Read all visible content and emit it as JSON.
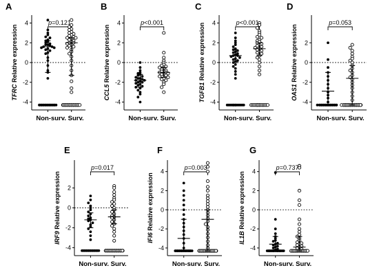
{
  "figure": {
    "chart_data": [
      {
        "type": "scatter",
        "panel": "A",
        "gene": "TFRC",
        "ylabel_suffix": " Relative expression",
        "categories": [
          "Non-surv.",
          "Surv."
        ],
        "yticks": [
          -4,
          -2,
          0,
          2,
          4
        ],
        "ylim": [
          -4.8,
          4.8
        ],
        "pvalue": "0.121",
        "series": [
          {
            "center": 1.6,
            "upper": 2.2,
            "lower": -1.0,
            "values": [
              4.3,
              3.3,
              3.0,
              2.8,
              2.6,
              2.5,
              2.3,
              2.2,
              2.1,
              2.0,
              1.9,
              1.8,
              1.8,
              1.7,
              1.6,
              1.6,
              1.5,
              1.5,
              1.4,
              1.3,
              1.2,
              1.0,
              0.9,
              0.5,
              0.2,
              -0.3,
              -0.8,
              -1.0,
              -1.6,
              -4.3,
              -4.3,
              -4.3,
              -4.3,
              -4.3,
              -4.3,
              -4.3,
              -4.3
            ]
          },
          {
            "center": 2.0,
            "upper": 2.5,
            "lower": -1.3,
            "values": [
              4.3,
              3.8,
              3.6,
              3.4,
              3.3,
              3.1,
              3.0,
              2.9,
              2.8,
              2.7,
              2.6,
              2.5,
              2.5,
              2.4,
              2.3,
              2.2,
              2.1,
              2.0,
              2.0,
              1.9,
              1.8,
              1.7,
              1.6,
              1.5,
              1.3,
              1.1,
              0.9,
              0.6,
              0.2,
              -0.3,
              -0.8,
              -1.3,
              -1.9,
              -2.6,
              -3.0,
              -4.3,
              -4.3,
              -4.3,
              -4.3,
              -4.3,
              -4.3,
              -4.3,
              -4.3
            ]
          }
        ]
      },
      {
        "type": "scatter",
        "panel": "B",
        "gene": "CCL5",
        "ylabel_suffix": " Relative expression",
        "categories": [
          "Non-surv.",
          "Surv."
        ],
        "yticks": [
          -4,
          -2,
          0,
          2,
          4
        ],
        "ylim": [
          -4.8,
          4.8
        ],
        "pvalue": "<0.001",
        "series": [
          {
            "center": -1.8,
            "upper": -1.2,
            "lower": -2.5,
            "values": [
              0.0,
              -0.5,
              -0.8,
              -1.0,
              -1.1,
              -1.2,
              -1.3,
              -1.4,
              -1.5,
              -1.6,
              -1.6,
              -1.7,
              -1.8,
              -1.8,
              -1.9,
              -2.0,
              -2.0,
              -2.1,
              -2.2,
              -2.3,
              -2.4,
              -2.5,
              -2.6,
              -2.8,
              -3.0,
              -3.2,
              -3.5,
              -4.0
            ]
          },
          {
            "center": -1.0,
            "upper": -0.5,
            "lower": -1.5,
            "values": [
              3.0,
              1.0,
              0.5,
              0.2,
              0.0,
              -0.2,
              -0.3,
              -0.4,
              -0.5,
              -0.6,
              -0.7,
              -0.8,
              -0.9,
              -0.9,
              -1.0,
              -1.0,
              -1.1,
              -1.2,
              -1.2,
              -1.3,
              -1.4,
              -1.5,
              -1.6,
              -1.7,
              -1.8,
              -2.0,
              -2.2,
              -2.5,
              -3.0
            ]
          }
        ]
      },
      {
        "type": "scatter",
        "panel": "C",
        "gene": "TGFB1",
        "ylabel_suffix": " Relative expression",
        "categories": [
          "Non-surv.",
          "Surv."
        ],
        "yticks": [
          -4,
          -2,
          0,
          2,
          4
        ],
        "ylim": [
          -4.8,
          4.8
        ],
        "pvalue": "<0.001",
        "series": [
          {
            "center": 0.7,
            "upper": 1.3,
            "lower": 0.0,
            "values": [
              3.0,
              2.5,
              2.2,
              2.0,
              1.8,
              1.6,
              1.4,
              1.3,
              1.2,
              1.1,
              1.0,
              0.9,
              0.8,
              0.7,
              0.7,
              0.6,
              0.5,
              0.4,
              0.3,
              0.2,
              0.1,
              0.0,
              -0.2,
              -0.4,
              -0.6,
              -0.9,
              -1.2,
              -1.6,
              -4.3,
              -4.3
            ]
          },
          {
            "center": 1.4,
            "upper": 2.0,
            "lower": 0.7,
            "values": [
              4.0,
              3.8,
              3.5,
              3.2,
              3.0,
              2.8,
              2.6,
              2.5,
              2.3,
              2.2,
              2.1,
              2.0,
              1.9,
              1.8,
              1.7,
              1.6,
              1.5,
              1.4,
              1.3,
              1.2,
              1.1,
              1.0,
              0.9,
              0.7,
              0.5,
              0.3,
              0.0,
              -0.4,
              -0.8,
              -1.2,
              -4.3,
              -4.3
            ]
          }
        ]
      },
      {
        "type": "scatter",
        "panel": "D",
        "gene": "OAS1",
        "ylabel_suffix": " Relative expression",
        "categories": [
          "Non-surv.",
          "Surv."
        ],
        "yticks": [
          -4,
          -2,
          0,
          2
        ],
        "ylim": [
          -4.8,
          4.8
        ],
        "pvalue": "0.053",
        "series": [
          {
            "center": -2.9,
            "upper": -1.0,
            "lower": -4.3,
            "values": [
              2.0,
              0.3,
              -0.5,
              -1.0,
              -1.4,
              -1.8,
              -2.2,
              -2.6,
              -3.0,
              -3.3,
              -3.6,
              -4.0,
              -4.3,
              -4.3,
              -4.3,
              -4.3,
              -4.3,
              -4.3,
              -4.3,
              -4.3,
              -4.3,
              -4.3
            ]
          },
          {
            "center": -1.6,
            "upper": -0.3,
            "lower": -4.3,
            "values": [
              1.8,
              1.5,
              1.2,
              0.9,
              0.6,
              0.4,
              0.2,
              0.0,
              -0.3,
              -0.6,
              -0.8,
              -1.0,
              -1.3,
              -1.5,
              -1.7,
              -2.0,
              -2.3,
              -2.6,
              -3.0,
              -3.4,
              -3.8,
              -4.3,
              -4.3,
              -4.3,
              -4.3,
              -4.3,
              -4.3,
              -4.3,
              -4.3,
              -4.3,
              -4.3
            ]
          }
        ]
      },
      {
        "type": "scatter",
        "panel": "E",
        "gene": "IRF9",
        "ylabel_suffix": " Relative expression",
        "categories": [
          "Non-surv.",
          "Surv."
        ],
        "yticks": [
          -4,
          -2,
          0,
          2
        ],
        "ylim": [
          -4.8,
          4.8
        ],
        "pvalue": "0.017",
        "series": [
          {
            "center": -1.2,
            "upper": -0.5,
            "lower": -2.0,
            "values": [
              1.2,
              0.8,
              0.5,
              0.2,
              0.0,
              -0.2,
              -0.4,
              -0.6,
              -0.8,
              -1.0,
              -1.1,
              -1.2,
              -1.3,
              -1.5,
              -1.7,
              -1.9,
              -2.1,
              -2.4,
              -2.8,
              -3.2,
              -4.3,
              -4.3,
              -4.3,
              -4.3,
              -4.3,
              -4.3,
              -4.3,
              -4.3
            ]
          },
          {
            "center": -0.9,
            "upper": -0.2,
            "lower": -1.6,
            "values": [
              2.2,
              2.0,
              1.6,
              1.3,
              1.0,
              0.8,
              0.6,
              0.4,
              0.2,
              0.0,
              -0.2,
              -0.4,
              -0.6,
              -0.8,
              -0.9,
              -1.0,
              -1.2,
              -1.4,
              -1.6,
              -1.8,
              -2.1,
              -2.4,
              -2.8,
              -3.3,
              -4.3,
              -4.3,
              -4.3,
              -4.3,
              -4.3,
              -4.3,
              -4.3,
              -4.3,
              -4.3
            ]
          }
        ]
      },
      {
        "type": "scatter",
        "panel": "F",
        "gene": "IFI6",
        "ylabel_suffix": " Relative expression",
        "categories": [
          "Non-surv.",
          "Surv."
        ],
        "yticks": [
          -4,
          -2,
          0,
          2,
          4
        ],
        "ylim": [
          -4.8,
          5.2
        ],
        "pvalue": "0.003",
        "series": [
          {
            "center": -3.0,
            "upper": -1.0,
            "lower": -4.3,
            "values": [
              2.8,
              2.0,
              1.5,
              1.0,
              0.5,
              0.0,
              -0.5,
              -1.0,
              -1.4,
              -1.8,
              -2.2,
              -2.6,
              -3.0,
              -3.5,
              -4.0,
              -4.3,
              -4.3,
              -4.3,
              -4.3,
              -4.3,
              -4.3,
              -4.3,
              -4.3
            ]
          },
          {
            "center": -1.0,
            "upper": 0.0,
            "lower": -4.3,
            "values": [
              4.9,
              4.5,
              4.0,
              3.0,
              2.4,
              2.0,
              1.5,
              1.2,
              0.9,
              0.6,
              0.3,
              0.0,
              -0.3,
              -0.6,
              -0.9,
              -1.2,
              -1.5,
              -1.8,
              -2.1,
              -2.5,
              -2.9,
              -3.3,
              -3.7,
              -4.0,
              -4.3,
              -4.3,
              -4.3,
              -4.3,
              -4.3,
              -4.3,
              -4.3,
              -4.3,
              -4.3
            ]
          }
        ]
      },
      {
        "type": "scatter",
        "panel": "G",
        "gene": "IL1B",
        "ylabel_suffix": " Relative expression",
        "categories": [
          "Non-surv.",
          "Surv."
        ],
        "yticks": [
          -4,
          -2,
          0,
          2,
          4
        ],
        "ylim": [
          -4.8,
          5.2
        ],
        "pvalue": "0.737",
        "series": [
          {
            "center": -3.6,
            "upper": -2.8,
            "lower": -4.2,
            "values": [
              3.9,
              -1.0,
              -2.0,
              -2.5,
              -2.8,
              -3.0,
              -3.2,
              -3.3,
              -3.5,
              -3.6,
              -3.7,
              -3.8,
              -3.9,
              -4.0,
              -4.1,
              -4.2,
              -4.3,
              -4.3,
              -4.3,
              -4.3,
              -4.3
            ]
          },
          {
            "center": -3.9,
            "upper": -2.8,
            "lower": -4.3,
            "values": [
              4.6,
              4.4,
              2.0,
              1.0,
              0.5,
              -1.0,
              -1.5,
              -2.0,
              -2.3,
              -2.6,
              -2.8,
              -3.0,
              -3.2,
              -3.4,
              -3.5,
              -3.6,
              -3.7,
              -3.8,
              -3.9,
              -4.0,
              -4.1,
              -4.2,
              -4.3,
              -4.3,
              -4.3,
              -4.3,
              -4.3,
              -4.3
            ]
          }
        ]
      }
    ]
  }
}
